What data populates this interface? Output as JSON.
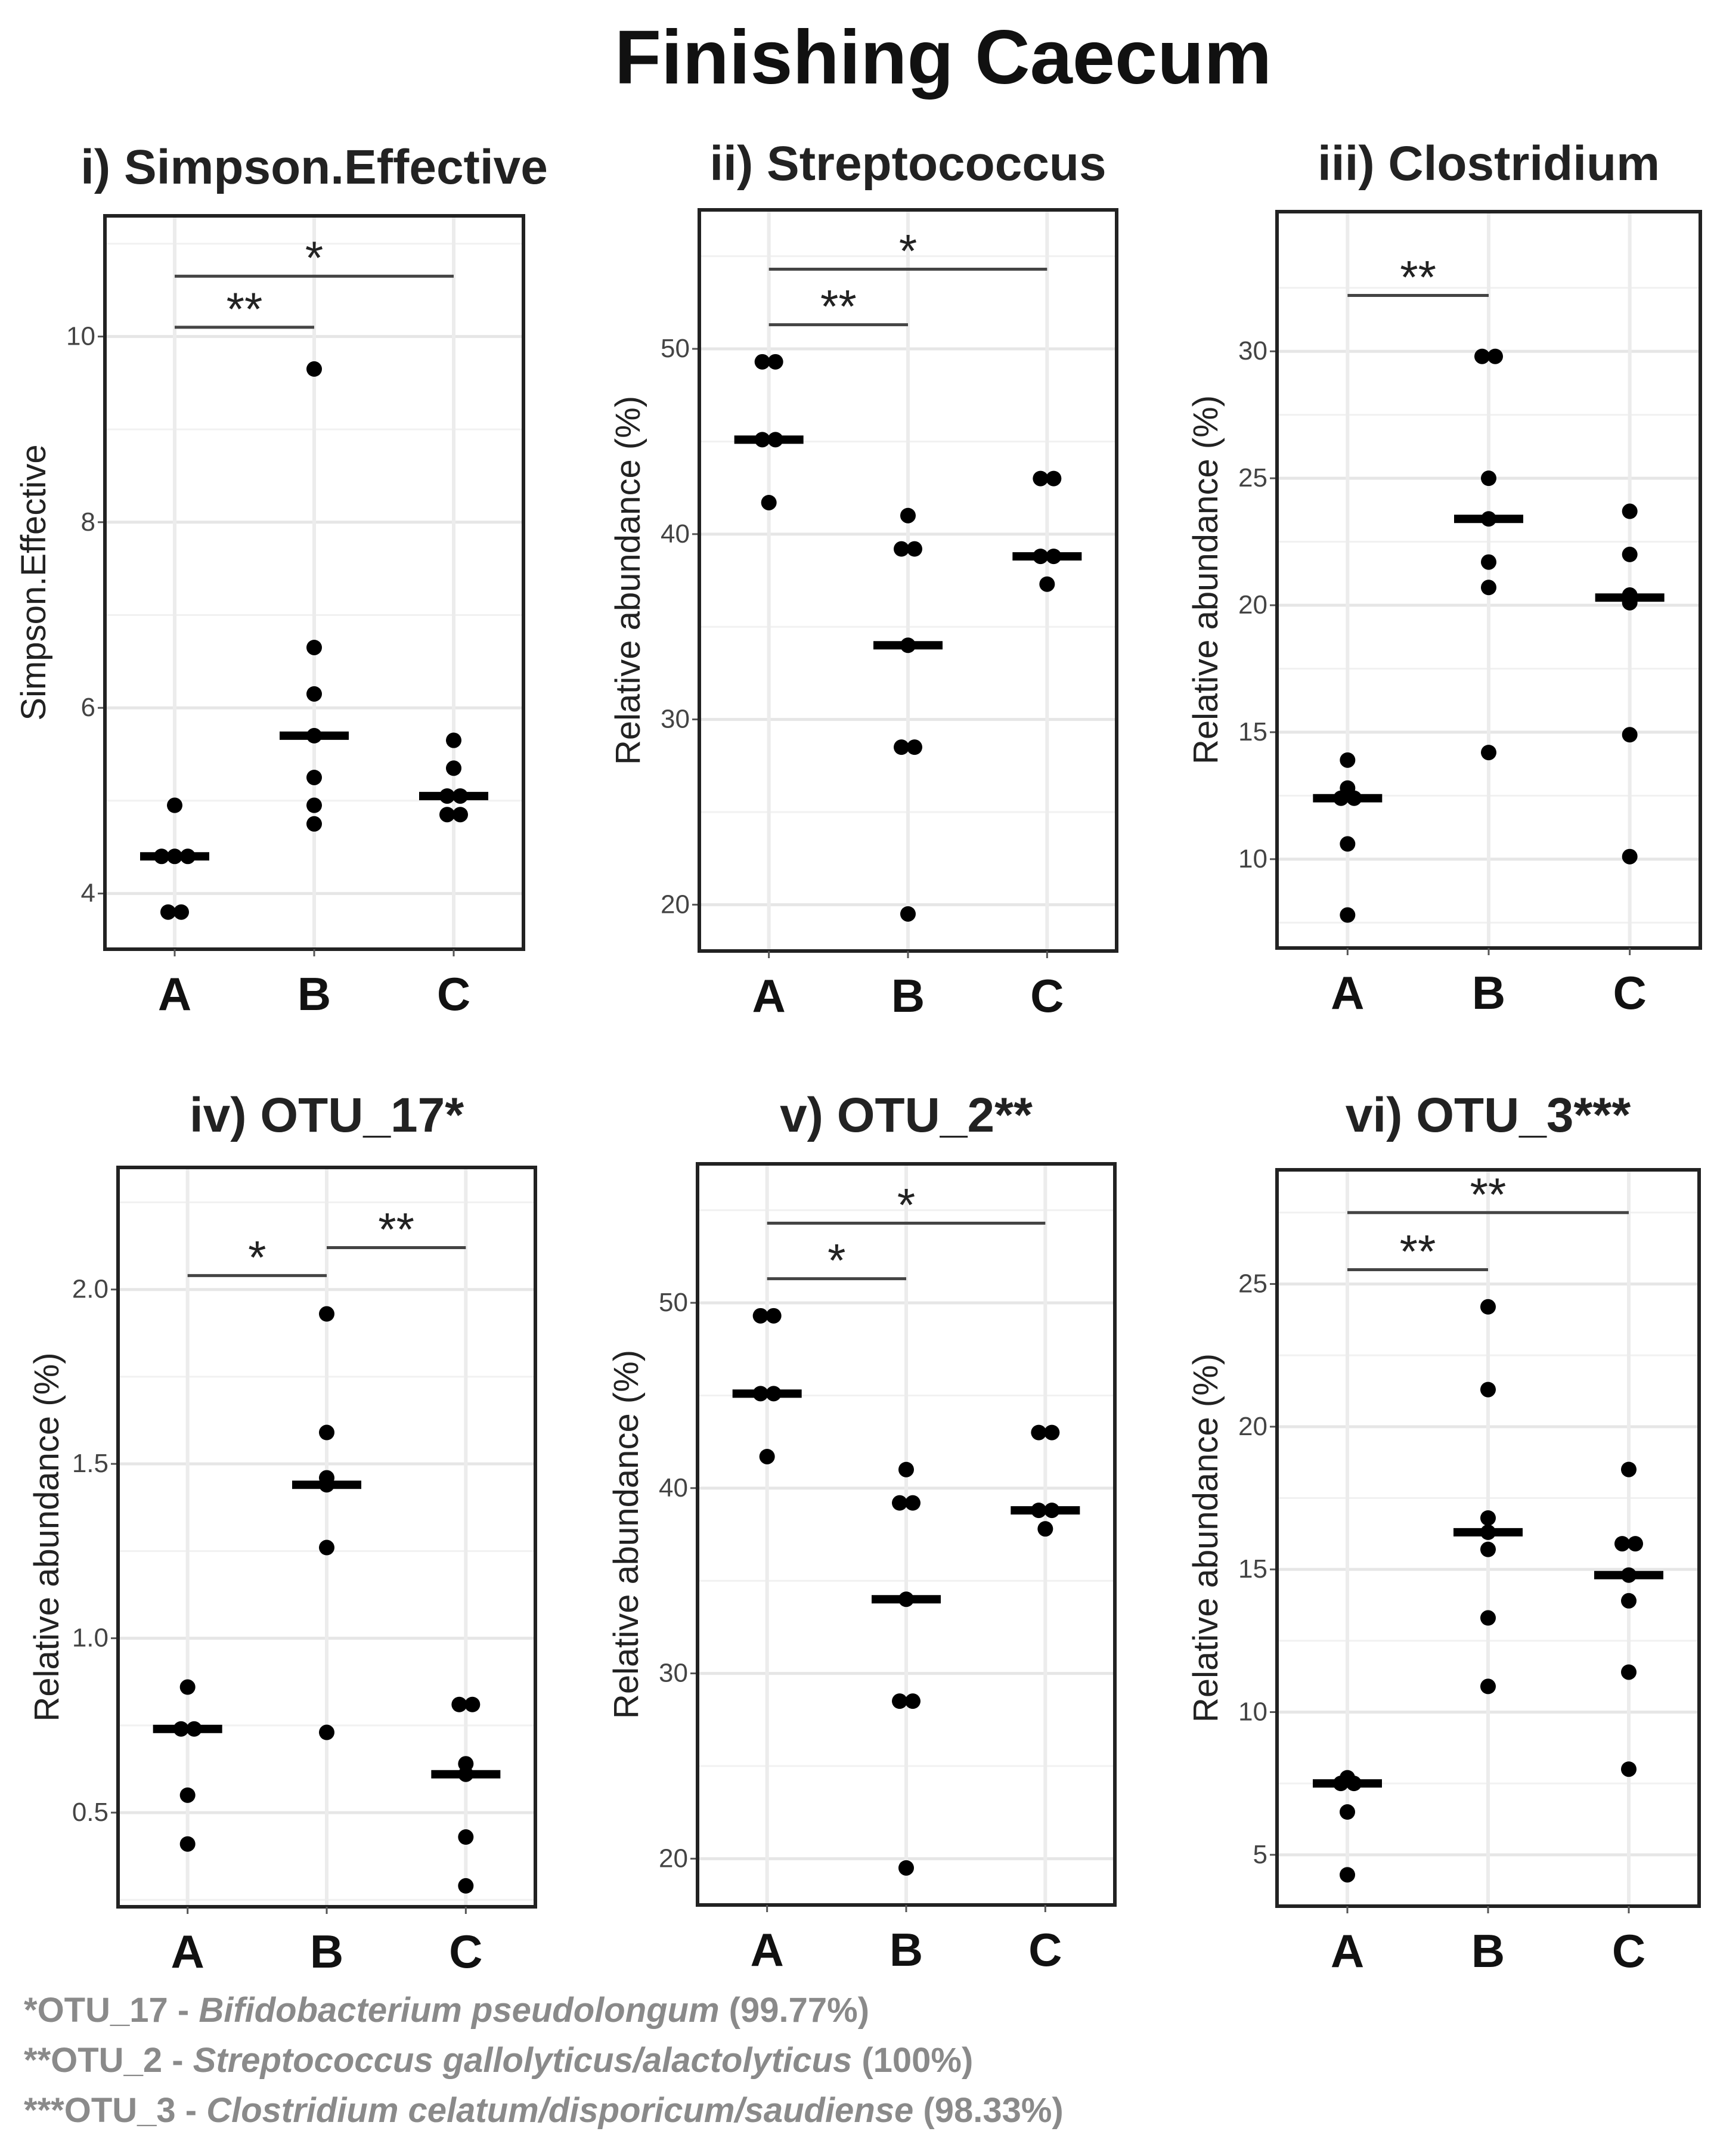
{
  "title": "Finishing Caecum",
  "chart_data": [
    {
      "type": "scatter",
      "panel": "i",
      "title": "i) Simpson.Effective",
      "ylabel": "Simpson.Effective",
      "xlabel": "",
      "categories": [
        "A",
        "B",
        "C"
      ],
      "ylim": [
        3.4,
        11.3
      ],
      "yticks": [
        4,
        6,
        8,
        10
      ],
      "ytick_labels": [
        "4",
        "6",
        "8",
        "10"
      ],
      "points": [
        [
          4.95,
          4.4,
          4.4,
          4.4,
          3.8,
          3.8
        ],
        [
          9.65,
          6.65,
          6.15,
          5.7,
          5.25,
          4.95,
          4.75
        ],
        [
          5.65,
          5.35,
          5.05,
          5.05,
          4.85,
          4.85
        ]
      ],
      "medians": [
        4.4,
        5.7,
        5.05
      ],
      "significance": [
        {
          "from": "A",
          "to": "B",
          "y": 10.1,
          "label": "**"
        },
        {
          "from": "A",
          "to": "C",
          "y": 10.65,
          "label": "*"
        }
      ]
    },
    {
      "type": "scatter",
      "panel": "ii",
      "title": "ii) Streptococcus",
      "ylabel": "Relative abundance (%)",
      "xlabel": "",
      "categories": [
        "A",
        "B",
        "C"
      ],
      "ylim": [
        17.5,
        57.5
      ],
      "yticks": [
        20,
        30,
        40,
        50
      ],
      "ytick_labels": [
        "20",
        "30",
        "40",
        "50"
      ],
      "points": [
        [
          49.3,
          49.3,
          45.1,
          45.1,
          41.7
        ],
        [
          41.0,
          39.2,
          39.2,
          34.0,
          28.5,
          28.5,
          19.5
        ],
        [
          43.0,
          43.0,
          38.8,
          38.8,
          37.3
        ]
      ],
      "medians": [
        45.1,
        34.0,
        38.8
      ],
      "significance": [
        {
          "from": "A",
          "to": "B",
          "y": 51.3,
          "label": "**"
        },
        {
          "from": "A",
          "to": "C",
          "y": 54.3,
          "label": "*"
        }
      ]
    },
    {
      "type": "scatter",
      "panel": "iii",
      "title": "iii) Clostridium",
      "ylabel": "Relative abundance (%)",
      "xlabel": "",
      "categories": [
        "A",
        "B",
        "C"
      ],
      "ylim": [
        6.5,
        35.5
      ],
      "yticks": [
        10,
        15,
        20,
        25,
        30
      ],
      "ytick_labels": [
        "10",
        "15",
        "20",
        "25",
        "30"
      ],
      "points": [
        [
          13.9,
          12.8,
          12.4,
          12.4,
          10.6,
          7.8
        ],
        [
          29.8,
          29.8,
          25.0,
          23.4,
          21.7,
          20.7,
          14.2
        ],
        [
          23.7,
          22.0,
          20.4,
          20.1,
          14.9,
          10.1
        ]
      ],
      "medians": [
        12.4,
        23.4,
        20.3
      ],
      "significance": [
        {
          "from": "A",
          "to": "B",
          "y": 32.2,
          "label": "**"
        }
      ]
    },
    {
      "type": "scatter",
      "panel": "iv",
      "title": "iv) OTU_17*",
      "ylabel": "Relative abundance (%)",
      "xlabel": "",
      "categories": [
        "A",
        "B",
        "C"
      ],
      "ylim": [
        0.23,
        2.35
      ],
      "yticks": [
        0.5,
        1.0,
        1.5,
        2.0
      ],
      "ytick_labels": [
        "0.5",
        "1.0",
        "1.5",
        "2.0"
      ],
      "points": [
        [
          0.86,
          0.74,
          0.74,
          0.55,
          0.41
        ],
        [
          1.93,
          1.59,
          1.46,
          1.44,
          1.26,
          0.73
        ],
        [
          0.81,
          0.81,
          0.64,
          0.61,
          0.43,
          0.29
        ]
      ],
      "medians": [
        0.74,
        1.44,
        0.61
      ],
      "significance": [
        {
          "from": "A",
          "to": "B",
          "y": 2.04,
          "label": "*"
        },
        {
          "from": "B",
          "to": "C",
          "y": 2.12,
          "label": "**"
        }
      ]
    },
    {
      "type": "scatter",
      "panel": "v",
      "title": "v) OTU_2**",
      "ylabel": "Relative abundance (%)",
      "xlabel": "",
      "categories": [
        "A",
        "B",
        "C"
      ],
      "ylim": [
        17.5,
        57.5
      ],
      "yticks": [
        20,
        30,
        40,
        50
      ],
      "ytick_labels": [
        "20",
        "30",
        "40",
        "50"
      ],
      "points": [
        [
          49.3,
          49.3,
          45.1,
          45.1,
          41.7
        ],
        [
          41.0,
          39.2,
          39.2,
          34.0,
          28.5,
          28.5,
          19.5
        ],
        [
          43.0,
          43.0,
          38.8,
          38.8,
          37.8
        ]
      ],
      "medians": [
        45.1,
        34.0,
        38.8
      ],
      "significance": [
        {
          "from": "A",
          "to": "B",
          "y": 51.3,
          "label": "*"
        },
        {
          "from": "A",
          "to": "C",
          "y": 54.3,
          "label": "*"
        }
      ]
    },
    {
      "type": "scatter",
      "panel": "vi",
      "title": "vi) OTU_3***",
      "ylabel": "Relative abundance (%)",
      "xlabel": "",
      "categories": [
        "A",
        "B",
        "C"
      ],
      "ylim": [
        3.2,
        29.0
      ],
      "yticks": [
        5,
        10,
        15,
        20,
        25
      ],
      "ytick_labels": [
        "5",
        "10",
        "15",
        "20",
        "25"
      ],
      "points": [
        [
          7.7,
          7.5,
          7.5,
          6.5,
          4.3
        ],
        [
          24.2,
          21.3,
          16.8,
          16.3,
          15.7,
          13.3,
          10.9
        ],
        [
          18.5,
          15.9,
          15.9,
          14.8,
          13.9,
          11.4,
          8.0
        ]
      ],
      "medians": [
        7.5,
        16.3,
        14.8
      ],
      "significance": [
        {
          "from": "A",
          "to": "B",
          "y": 25.5,
          "label": "**"
        },
        {
          "from": "A",
          "to": "C",
          "y": 27.5,
          "label": "**"
        }
      ]
    }
  ],
  "footnotes": [
    {
      "prefix": "*OTU_17 - ",
      "species": "Bifidobacterium pseudolongum",
      "identity": " (99.77%)"
    },
    {
      "prefix": "**OTU_2 - ",
      "species": "Streptococcus gallolyticus/alactolyticus",
      "identity": " (100%)"
    },
    {
      "prefix": "***OTU_3 - ",
      "species": "Clostridium celatum/disporicum/saudiense",
      "identity": " (98.33%)"
    }
  ]
}
